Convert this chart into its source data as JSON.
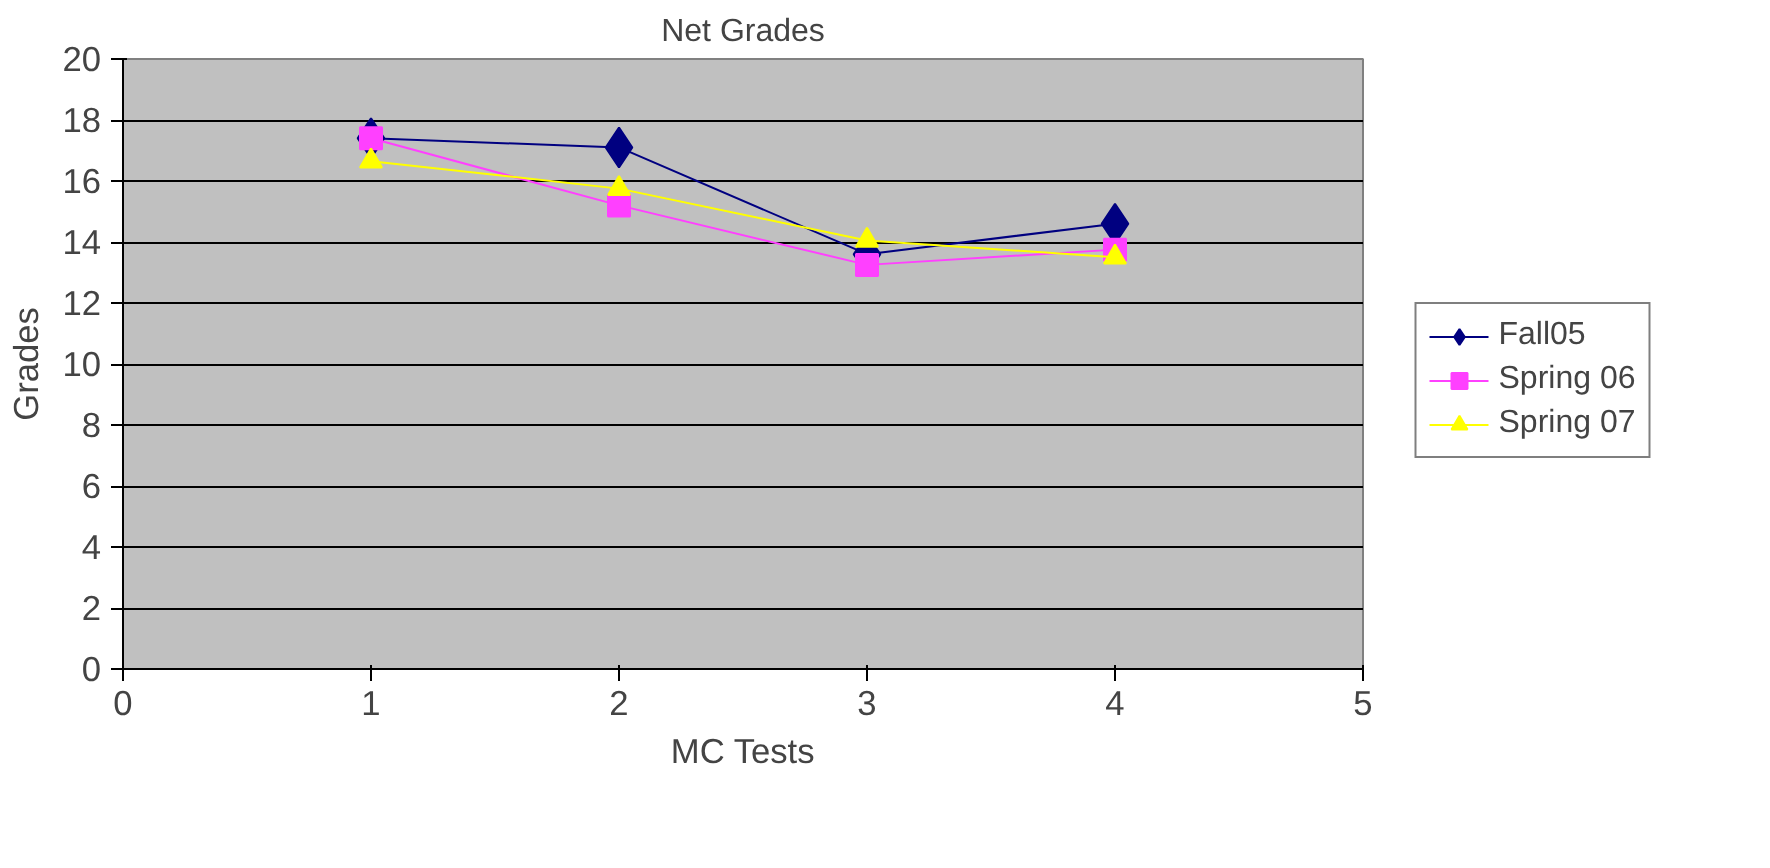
{
  "chart_data": {
    "type": "line",
    "title": "Net Grades",
    "xlabel": "MC Tests",
    "ylabel": "Grades",
    "x": [
      1,
      2,
      3,
      4
    ],
    "series": [
      {
        "name": "Fall05",
        "color": "#000080",
        "marker": "diamond",
        "values": [
          17.4,
          17.1,
          13.6,
          14.6
        ]
      },
      {
        "name": "Spring 06",
        "color": "#ff40ff",
        "marker": "square",
        "values": [
          17.4,
          15.2,
          13.25,
          13.75
        ]
      },
      {
        "name": "Spring 07",
        "color": "#ffff00",
        "marker": "triangle",
        "values": [
          16.65,
          15.75,
          14.05,
          13.5
        ]
      }
    ],
    "xlim": [
      0,
      5
    ],
    "xticks": [
      0,
      1,
      2,
      3,
      4,
      5
    ],
    "ylim": [
      0,
      20
    ],
    "yticks": [
      0,
      2,
      4,
      6,
      8,
      10,
      12,
      14,
      16,
      18,
      20
    ],
    "grid": "y",
    "legend": "right",
    "line_style": "solid"
  }
}
